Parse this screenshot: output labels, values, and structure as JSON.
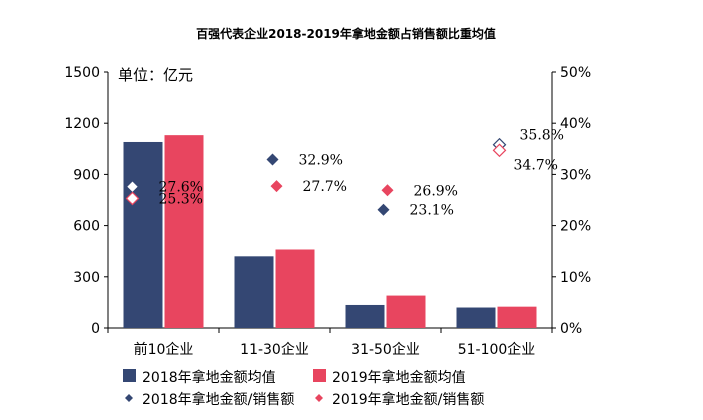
{
  "chart_data": {
    "type": "bar",
    "title": "百强代表企业2018-2019年拿地金额占销售额比重均值",
    "unit_label": "单位：亿元",
    "categories": [
      "前10企业",
      "11-30企业",
      "31-50企业",
      "51-100企业"
    ],
    "left_axis": {
      "ylim": [
        0,
        1500
      ],
      "ticks": [
        "0",
        "300",
        "600",
        "900",
        "1200",
        "1500"
      ]
    },
    "right_axis": {
      "ylim": [
        0,
        50
      ],
      "ticks": [
        "0%",
        "10%",
        "20%",
        "30%",
        "40%",
        "50%"
      ]
    },
    "series": [
      {
        "name": "2018年拿地金额均值",
        "type": "bar",
        "axis": "left",
        "color": "#344773",
        "values": [
          1090,
          420,
          135,
          120
        ]
      },
      {
        "name": "2019年拿地金额均值",
        "type": "bar",
        "axis": "left",
        "color": "#e8455f",
        "values": [
          1130,
          460,
          190,
          125
        ]
      },
      {
        "name": "2018年拿地金额/销售额",
        "type": "scatter",
        "axis": "right",
        "color": "#344773",
        "values": [
          27.6,
          32.9,
          23.1,
          35.8
        ],
        "labels": [
          "27.6%",
          "32.9%",
          "23.1%",
          "35.8%"
        ]
      },
      {
        "name": "2019年拿地金额/销售额",
        "type": "scatter",
        "axis": "right",
        "color": "#e8455f",
        "values": [
          25.3,
          27.7,
          26.9,
          34.7
        ],
        "labels": [
          "25.3%",
          "27.7%",
          "26.9%",
          "34.7%"
        ]
      }
    ],
    "legend_position": "bottom",
    "grid": false
  }
}
